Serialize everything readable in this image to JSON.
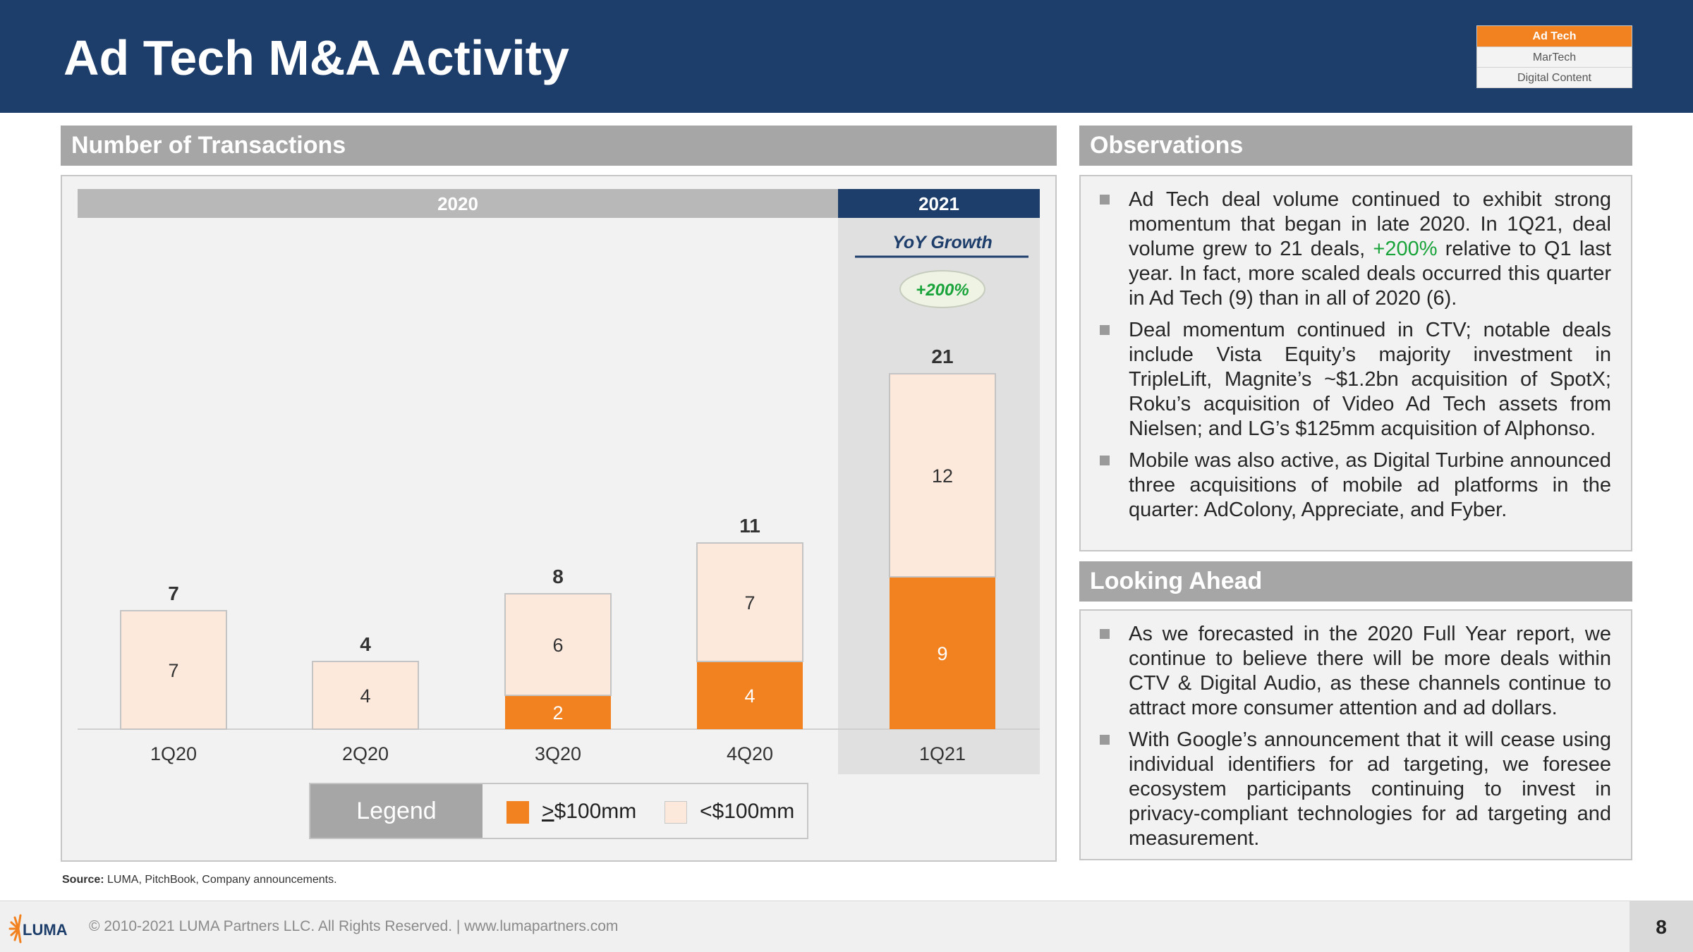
{
  "header": {
    "title": "Ad Tech M&A Activity"
  },
  "tabs": [
    "Ad Tech",
    "MarTech",
    "Digital Content"
  ],
  "left_section": {
    "title": "Number of Transactions"
  },
  "chart_data": {
    "type": "bar",
    "stacked": true,
    "categories": [
      "1Q20",
      "2Q20",
      "3Q20",
      "4Q20",
      "1Q21"
    ],
    "series": [
      {
        "name": ">$100mm",
        "values": [
          0,
          0,
          2,
          4,
          9
        ],
        "color": "#f28120"
      },
      {
        "name": "<$100mm",
        "values": [
          7,
          4,
          6,
          7,
          12
        ],
        "color": "#fce9dc"
      }
    ],
    "totals": [
      7,
      4,
      8,
      11,
      21
    ],
    "year_groups": [
      {
        "label": "2020",
        "categories": [
          "1Q20",
          "2Q20",
          "3Q20",
          "4Q20"
        ]
      },
      {
        "label": "2021",
        "categories": [
          "1Q21"
        ]
      }
    ],
    "yoy_growth": {
      "label": "YoY Growth",
      "value": "+200%"
    },
    "legend_title": "Legend",
    "legend": {
      "high_prefix": ">",
      "high_rest": "$100mm",
      "low": "<$100mm"
    },
    "ylim": [
      0,
      21
    ]
  },
  "observations": {
    "title": "Observations",
    "bullets": [
      {
        "pre": "Ad Tech deal volume continued to exhibit strong momentum that began in late 2020. In 1Q21, deal volume grew to 21 deals, ",
        "highlight": "+200%",
        "post": " relative to Q1 last year. In fact, more scaled deals occurred this quarter in Ad Tech (9) than in all of 2020 (6)."
      },
      {
        "pre": "Deal momentum continued in CTV; notable deals include Vista Equity’s majority investment in TripleLift, Magnite’s ~$1.2bn acquisition of SpotX; Roku’s acquisition of Video Ad Tech assets from Nielsen; and LG’s $125mm acquisition of Alphonso.",
        "highlight": "",
        "post": ""
      },
      {
        "pre": "Mobile was also active, as Digital Turbine announced three acquisitions of mobile ad platforms in the quarter: AdColony, Appreciate, and Fyber.",
        "highlight": "",
        "post": ""
      }
    ]
  },
  "looking_ahead": {
    "title": "Looking Ahead",
    "bullets": [
      "As we forecasted in the 2020 Full Year report, we continue to believe there will be more deals within CTV & Digital Audio, as these channels continue to attract more consumer attention and ad dollars.",
      "With Google’s announcement that it will cease using individual identifiers for ad targeting, we foresee ecosystem participants continuing to invest in privacy-compliant technologies for ad targeting and measurement."
    ]
  },
  "source": {
    "label": "Source:",
    "text": " LUMA, PitchBook, Company announcements."
  },
  "footer": {
    "logo_text": "LUMA",
    "copyright": "© 2010-2021 LUMA Partners LLC. All Rights Reserved. | www.lumapartners.com",
    "page_number": "8"
  },
  "colors": {
    "navy": "#1d3d6b",
    "orange": "#f28120",
    "cream": "#fce9dc",
    "gray_header": "#a6a6a6",
    "green": "#19a33a"
  }
}
